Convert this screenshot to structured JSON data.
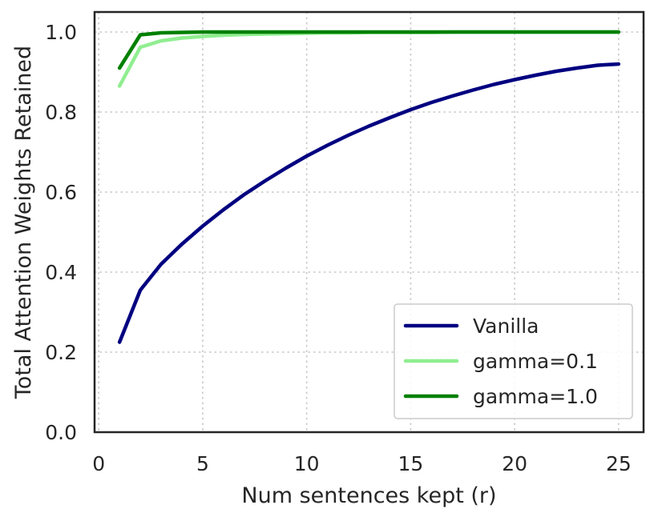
{
  "chart_data": {
    "type": "line",
    "title": "",
    "xlabel": "Num sentences kept (r)",
    "ylabel": "Total Attention Weights Retained",
    "xlim": [
      -0.2,
      26.2
    ],
    "ylim": [
      0.0,
      1.05
    ],
    "x_ticks": [
      0,
      5,
      10,
      15,
      20,
      25
    ],
    "y_ticks": [
      0.0,
      0.2,
      0.4,
      0.6,
      0.8,
      1.0
    ],
    "x_tick_labels": [
      "0",
      "5",
      "10",
      "15",
      "20",
      "25"
    ],
    "y_tick_labels": [
      "0.0",
      "0.2",
      "0.4",
      "0.6",
      "0.8",
      "1.0"
    ],
    "grid": true,
    "legend_position": "bottom-right",
    "x": [
      1,
      2,
      3,
      4,
      5,
      6,
      7,
      8,
      9,
      10,
      11,
      12,
      13,
      14,
      15,
      16,
      17,
      18,
      19,
      20,
      21,
      22,
      23,
      24,
      25
    ],
    "series": [
      {
        "name": "Vanilla",
        "color": "#000080",
        "values": [
          0.225,
          0.355,
          0.42,
          0.47,
          0.515,
          0.556,
          0.594,
          0.628,
          0.66,
          0.69,
          0.717,
          0.742,
          0.765,
          0.786,
          0.806,
          0.824,
          0.84,
          0.855,
          0.869,
          0.881,
          0.892,
          0.902,
          0.91,
          0.917,
          0.92
        ]
      },
      {
        "name": "gamma=0.1",
        "color": "#90ee90",
        "values": [
          0.865,
          0.962,
          0.978,
          0.985,
          0.989,
          0.992,
          0.994,
          0.995,
          0.996,
          0.997,
          0.998,
          0.998,
          0.999,
          0.999,
          0.999,
          0.999,
          1.0,
          1.0,
          1.0,
          1.0,
          1.0,
          1.0,
          1.0,
          1.0,
          1.0
        ]
      },
      {
        "name": "gamma=1.0",
        "color": "#008000",
        "values": [
          0.91,
          0.993,
          0.998,
          0.999,
          1.0,
          1.0,
          1.0,
          1.0,
          1.0,
          1.0,
          1.0,
          1.0,
          1.0,
          1.0,
          1.0,
          1.0,
          1.0,
          1.0,
          1.0,
          1.0,
          1.0,
          1.0,
          1.0,
          1.0,
          1.0
        ]
      }
    ]
  }
}
